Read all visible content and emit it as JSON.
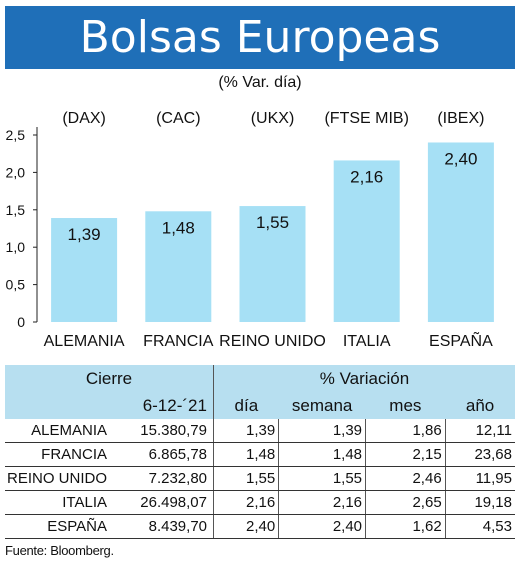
{
  "title": "Bolsas Europeas",
  "subtitle": "(% Var. día)",
  "chart_data": {
    "type": "bar",
    "categories": [
      "ALEMANIA",
      "FRANCIA",
      "REINO UNIDO",
      "ITALIA",
      "ESPAÑA"
    ],
    "indices": [
      "(DAX)",
      "(CAC)",
      "(UKX)",
      "(FTSE MIB)",
      "(IBEX)"
    ],
    "values": [
      1.39,
      1.48,
      1.55,
      2.16,
      2.4
    ],
    "value_labels": [
      "1,39",
      "1,48",
      "1,55",
      "2,16",
      "2,40"
    ],
    "yticks": [
      0,
      0.5,
      1.0,
      1.5,
      2.0,
      2.5
    ],
    "ytick_labels": [
      "0",
      "0,5",
      "1,0",
      "1,5",
      "2,0",
      "2,5"
    ],
    "ylim": [
      0,
      2.5
    ],
    "bar_color": "#a6e0f5",
    "grid": false
  },
  "table": {
    "header_cierre": "Cierre",
    "header_variacion": "% Variación",
    "date": "6-12-´21",
    "columns": [
      "día",
      "semana",
      "mes",
      "año"
    ],
    "rows": [
      {
        "name": "ALEMANIA",
        "cierre": "15.380,79",
        "dia": "1,39",
        "semana": "1,39",
        "mes": "1,86",
        "anio": "12,11"
      },
      {
        "name": "FRANCIA",
        "cierre": "6.865,78",
        "dia": "1,48",
        "semana": "1,48",
        "mes": "2,15",
        "anio": "23,68"
      },
      {
        "name": "REINO UNIDO",
        "cierre": "7.232,80",
        "dia": "1,55",
        "semana": "1,55",
        "mes": "2,46",
        "anio": "11,95"
      },
      {
        "name": "ITALIA",
        "cierre": "26.498,07",
        "dia": "2,16",
        "semana": "2,16",
        "mes": "2,65",
        "anio": "19,18"
      },
      {
        "name": "ESPAÑA",
        "cierre": "8.439,70",
        "dia": "2,40",
        "semana": "2,40",
        "mes": "1,62",
        "anio": "4,53"
      }
    ]
  },
  "source": "Fuente: Bloomberg.",
  "colors": {
    "banner": "#1f6fb8",
    "table_header": "#b7dff0"
  }
}
